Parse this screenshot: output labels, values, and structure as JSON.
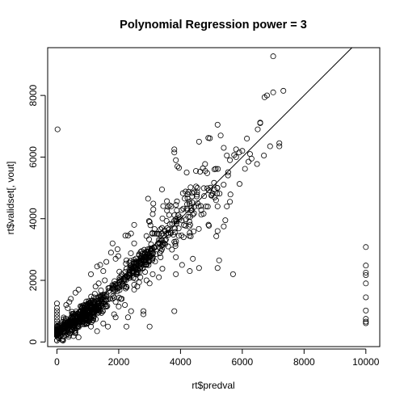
{
  "chart_data": {
    "type": "scatter",
    "title": "Polynomial Regression power = 3",
    "xlabel": "rt$predval",
    "ylabel": "rt$validset[, vout]",
    "xlim": [
      -300,
      10450
    ],
    "ylim": [
      -150,
      9550
    ],
    "x_ticks": [
      0,
      2000,
      4000,
      6000,
      8000,
      10000
    ],
    "y_ticks": [
      0,
      2000,
      4000,
      6000,
      8000
    ],
    "x_tick_labels": [
      "0",
      "2000",
      "4000",
      "6000",
      "8000",
      "10000"
    ],
    "y_tick_labels": [
      "0",
      "2000",
      "4000",
      "6000",
      "8000"
    ],
    "grid": false,
    "legend": "none",
    "reference_line": {
      "type": "y=x",
      "points": [
        [
          0,
          0
        ],
        [
          9550,
          9550
        ]
      ]
    },
    "marker": "open-circle",
    "color": "#000000",
    "clusters": [
      {
        "n": 380,
        "cx": 850,
        "cy": 850,
        "sx": 420,
        "sy": 330
      },
      {
        "n": 60,
        "cx": 200,
        "cy": 480,
        "sx": 220,
        "sy": 120
      },
      {
        "n": 120,
        "cx": 2850,
        "cy": 2700,
        "sx": 280,
        "sy": 260
      },
      {
        "n": 70,
        "cx": 2200,
        "cy": 2050,
        "sx": 260,
        "sy": 240
      },
      {
        "n": 160,
        "cx": 4000,
        "cy": 4000,
        "sx": 850,
        "sy": 800
      }
    ],
    "points": [
      [
        20,
        6900
      ],
      [
        7000,
        9270
      ],
      [
        7330,
        8150
      ],
      [
        7000,
        8100
      ],
      [
        6720,
        7940
      ],
      [
        6800,
        8000
      ],
      [
        6580,
        7120
      ],
      [
        6580,
        7100
      ],
      [
        6500,
        6900
      ],
      [
        6150,
        6600
      ],
      [
        7200,
        6450
      ],
      [
        7200,
        6350
      ],
      [
        6900,
        6350
      ],
      [
        6700,
        6050
      ],
      [
        6300,
        5950
      ],
      [
        6200,
        5850
      ],
      [
        6250,
        6100
      ],
      [
        6000,
        6200
      ],
      [
        5900,
        6150
      ],
      [
        5800,
        6000
      ],
      [
        5600,
        5900
      ],
      [
        5500,
        6050
      ],
      [
        5800,
        6250
      ],
      [
        5400,
        6300
      ],
      [
        5200,
        7050
      ],
      [
        5300,
        6700
      ],
      [
        4900,
        6620
      ],
      [
        4950,
        6610
      ],
      [
        4600,
        6500
      ],
      [
        3800,
        6150
      ],
      [
        3800,
        6250
      ],
      [
        3850,
        5900
      ],
      [
        3900,
        5700
      ],
      [
        3950,
        5650
      ],
      [
        4200,
        5500
      ],
      [
        4500,
        5550
      ],
      [
        4800,
        5550
      ],
      [
        5100,
        5600
      ],
      [
        4550,
        5000
      ],
      [
        5000,
        4750
      ],
      [
        5150,
        4600
      ],
      [
        5600,
        4550
      ],
      [
        5200,
        4400
      ],
      [
        5500,
        4400
      ],
      [
        5450,
        3950
      ],
      [
        5400,
        3750
      ],
      [
        5200,
        3600
      ],
      [
        5250,
        2650
      ],
      [
        5200,
        2400
      ],
      [
        5700,
        2200
      ],
      [
        4600,
        2400
      ],
      [
        4300,
        2300
      ],
      [
        4400,
        2700
      ],
      [
        3850,
        2750
      ],
      [
        3850,
        2200
      ],
      [
        4050,
        2500
      ],
      [
        4100,
        3400
      ],
      [
        3800,
        3250
      ],
      [
        3300,
        3500
      ],
      [
        3400,
        3700
      ],
      [
        3600,
        3100
      ],
      [
        3500,
        3300
      ],
      [
        3000,
        3900
      ],
      [
        3100,
        4150
      ],
      [
        2950,
        4650
      ],
      [
        3400,
        4950
      ],
      [
        3700,
        4400
      ],
      [
        2500,
        3800
      ],
      [
        2300,
        3450
      ],
      [
        2500,
        3200
      ],
      [
        2250,
        2650
      ],
      [
        1800,
        3200
      ],
      [
        1900,
        2700
      ],
      [
        1750,
        2900
      ],
      [
        1600,
        2600
      ],
      [
        1500,
        2300
      ],
      [
        1550,
        2000
      ],
      [
        1400,
        2500
      ],
      [
        1300,
        2450
      ],
      [
        1350,
        1900
      ],
      [
        1250,
        1800
      ],
      [
        1200,
        1450
      ],
      [
        1100,
        2200
      ],
      [
        1450,
        1450
      ],
      [
        1700,
        1750
      ],
      [
        1800,
        1400
      ],
      [
        1900,
        1300
      ],
      [
        2100,
        1400
      ],
      [
        2000,
        1150
      ],
      [
        2200,
        1200
      ],
      [
        1850,
        900
      ],
      [
        2300,
        800
      ],
      [
        2400,
        1000
      ],
      [
        1900,
        800
      ],
      [
        2250,
        500
      ],
      [
        2800,
        900
      ],
      [
        2800,
        1000
      ],
      [
        3000,
        500
      ],
      [
        3800,
        1000
      ],
      [
        2500,
        1700
      ],
      [
        2600,
        1800
      ],
      [
        2700,
        2100
      ],
      [
        3100,
        2200
      ],
      [
        3300,
        2100
      ],
      [
        3000,
        1900
      ],
      [
        2900,
        2000
      ],
      [
        700,
        1700
      ],
      [
        600,
        1600
      ],
      [
        450,
        1400
      ],
      [
        400,
        1300
      ],
      [
        300,
        1200
      ],
      [
        350,
        1100
      ],
      [
        0,
        1250
      ],
      [
        0,
        1100
      ],
      [
        0,
        1000
      ],
      [
        0,
        900
      ],
      [
        0,
        800
      ],
      [
        0,
        700
      ],
      [
        0,
        600
      ],
      [
        0,
        520
      ],
      [
        0,
        450
      ],
      [
        0,
        380
      ],
      [
        0,
        320
      ],
      [
        0,
        250
      ],
      [
        50,
        150
      ],
      [
        100,
        200
      ],
      [
        200,
        100
      ],
      [
        600,
        300
      ],
      [
        700,
        150
      ],
      [
        1100,
        500
      ],
      [
        1300,
        350
      ],
      [
        1500,
        600
      ],
      [
        1650,
        500
      ],
      [
        10000,
        3080
      ],
      [
        10000,
        2480
      ],
      [
        10000,
        2250
      ],
      [
        10000,
        2170
      ],
      [
        10000,
        1900
      ],
      [
        10000,
        1450
      ],
      [
        10000,
        1020
      ],
      [
        10000,
        750
      ],
      [
        10000,
        660
      ],
      [
        10000,
        610
      ]
    ]
  }
}
